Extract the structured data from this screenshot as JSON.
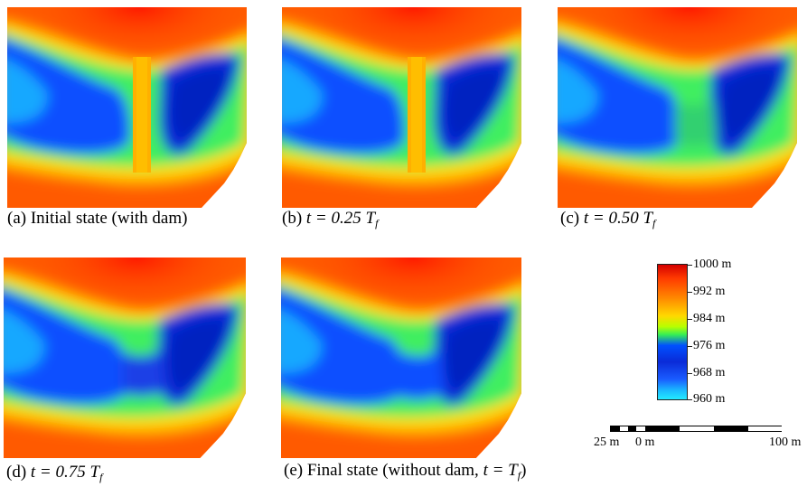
{
  "panels": [
    {
      "id": "a",
      "caption_prefix": "(a) Initial state (with dam)",
      "dam": "full"
    },
    {
      "id": "b",
      "caption_prefix": "(b) ",
      "t_value": "t = 0.25 ",
      "tf": "T",
      "tf_sub": "f",
      "dam": "full"
    },
    {
      "id": "c",
      "caption_prefix": "(c) ",
      "t_value": "t = 0.50 ",
      "tf": "T",
      "tf_sub": "f",
      "dam": "partial"
    },
    {
      "id": "d",
      "caption_prefix": "(d) ",
      "t_value": "t = 0.75 ",
      "tf": "T",
      "tf_sub": "f",
      "dam": "faint"
    },
    {
      "id": "e",
      "caption_prefix": "(e) Final state (without dam, ",
      "t_value": "t = ",
      "tf": "T",
      "tf_sub": "f",
      "caption_suffix": ")",
      "dam": "none"
    }
  ],
  "legend": {
    "labels": [
      "1000 m",
      "992 m",
      "984 m",
      "976 m",
      "968 m",
      "960 m"
    ],
    "colors": {
      "max": "#d40000",
      "mid": "#ffd800",
      "low": "#0a2bd8",
      "min": "#23eaff"
    }
  },
  "scale_bar": {
    "labels": [
      "25 m",
      "0 m",
      "100 m"
    ]
  }
}
